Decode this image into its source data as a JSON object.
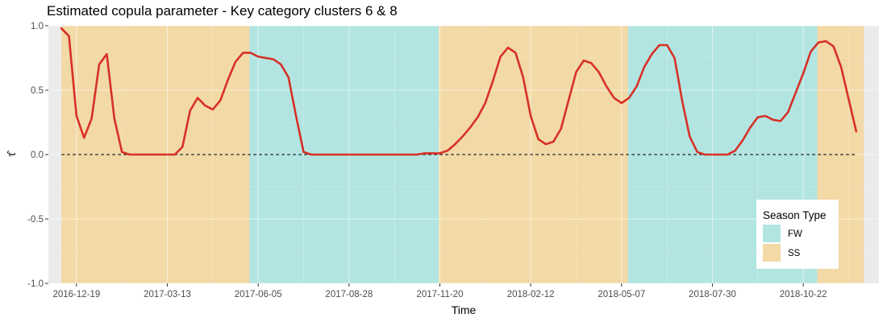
{
  "chart_data": {
    "type": "line",
    "title": "Estimated copula parameter - Key category clusters 6 & 8",
    "xlabel": "Time",
    "ylabel": "τ̂",
    "ylim": [
      -1.0,
      1.0
    ],
    "xlim": [
      "2016-11-23",
      "2018-12-31"
    ],
    "grid": true,
    "x_ticks": [
      "2016-12-19",
      "2017-03-13",
      "2017-06-05",
      "2017-08-28",
      "2017-11-20",
      "2018-02-12",
      "2018-05-07",
      "2018-07-30",
      "2018-10-22"
    ],
    "y_ticks": [
      {
        "value": -1.0,
        "label": "-1.0"
      },
      {
        "value": -0.5,
        "label": "-0.5"
      },
      {
        "value": 0.0,
        "label": "0.0"
      },
      {
        "value": 0.5,
        "label": "0.5"
      },
      {
        "value": 1.0,
        "label": "1.0"
      }
    ],
    "reference_line": {
      "y": 0.0,
      "style": "dashed"
    },
    "legend": {
      "title": "Season Type",
      "position": "bottom-right",
      "entries": [
        {
          "label": "FW",
          "color": "#b2e5e1"
        },
        {
          "label": "SS",
          "color": "#f2d9a6"
        }
      ]
    },
    "season_bands": [
      {
        "type": "SS",
        "start": "2016-12-05",
        "end": "2017-05-28"
      },
      {
        "type": "FW",
        "start": "2017-05-28",
        "end": "2017-11-19"
      },
      {
        "type": "SS",
        "start": "2017-11-19",
        "end": "2018-05-13"
      },
      {
        "type": "FW",
        "start": "2018-05-13",
        "end": "2018-11-04"
      },
      {
        "type": "SS",
        "start": "2018-11-04",
        "end": "2018-12-17"
      }
    ],
    "series": [
      {
        "color": "#d73027",
        "points": [
          [
            "2016-12-05",
            0.98
          ],
          [
            "2016-12-12",
            0.92
          ],
          [
            "2016-12-19",
            0.3
          ],
          [
            "2016-12-26",
            0.13
          ],
          [
            "2017-01-02",
            0.28
          ],
          [
            "2017-01-09",
            0.7
          ],
          [
            "2017-01-16",
            0.78
          ],
          [
            "2017-01-23",
            0.28
          ],
          [
            "2017-01-30",
            0.02
          ],
          [
            "2017-02-06",
            0.0
          ],
          [
            "2017-02-13",
            0.0
          ],
          [
            "2017-02-20",
            0.0
          ],
          [
            "2017-02-27",
            0.0
          ],
          [
            "2017-03-06",
            0.0
          ],
          [
            "2017-03-13",
            0.0
          ],
          [
            "2017-03-20",
            0.0
          ],
          [
            "2017-03-27",
            0.06
          ],
          [
            "2017-04-03",
            0.34
          ],
          [
            "2017-04-10",
            0.44
          ],
          [
            "2017-04-17",
            0.38
          ],
          [
            "2017-04-24",
            0.35
          ],
          [
            "2017-05-01",
            0.42
          ],
          [
            "2017-05-08",
            0.58
          ],
          [
            "2017-05-15",
            0.72
          ],
          [
            "2017-05-22",
            0.79
          ],
          [
            "2017-05-29",
            0.79
          ],
          [
            "2017-06-05",
            0.76
          ],
          [
            "2017-06-12",
            0.75
          ],
          [
            "2017-06-19",
            0.74
          ],
          [
            "2017-06-26",
            0.7
          ],
          [
            "2017-07-03",
            0.6
          ],
          [
            "2017-07-10",
            0.3
          ],
          [
            "2017-07-17",
            0.02
          ],
          [
            "2017-07-24",
            0.0
          ],
          [
            "2017-08-28",
            0.0
          ],
          [
            "2017-10-30",
            0.0
          ],
          [
            "2017-11-06",
            0.01
          ],
          [
            "2017-11-20",
            0.01
          ],
          [
            "2017-11-27",
            0.03
          ],
          [
            "2017-12-04",
            0.08
          ],
          [
            "2017-12-11",
            0.14
          ],
          [
            "2017-12-18",
            0.21
          ],
          [
            "2017-12-25",
            0.29
          ],
          [
            "2018-01-01",
            0.4
          ],
          [
            "2018-01-08",
            0.57
          ],
          [
            "2018-01-15",
            0.76
          ],
          [
            "2018-01-22",
            0.83
          ],
          [
            "2018-01-29",
            0.79
          ],
          [
            "2018-02-05",
            0.6
          ],
          [
            "2018-02-12",
            0.3
          ],
          [
            "2018-02-19",
            0.12
          ],
          [
            "2018-02-26",
            0.08
          ],
          [
            "2018-03-05",
            0.1
          ],
          [
            "2018-03-12",
            0.2
          ],
          [
            "2018-03-19",
            0.42
          ],
          [
            "2018-03-26",
            0.64
          ],
          [
            "2018-04-02",
            0.73
          ],
          [
            "2018-04-09",
            0.71
          ],
          [
            "2018-04-16",
            0.64
          ],
          [
            "2018-04-23",
            0.53
          ],
          [
            "2018-04-30",
            0.44
          ],
          [
            "2018-05-07",
            0.4
          ],
          [
            "2018-05-14",
            0.44
          ],
          [
            "2018-05-21",
            0.53
          ],
          [
            "2018-05-28",
            0.68
          ],
          [
            "2018-06-04",
            0.78
          ],
          [
            "2018-06-11",
            0.85
          ],
          [
            "2018-06-18",
            0.85
          ],
          [
            "2018-06-25",
            0.75
          ],
          [
            "2018-07-02",
            0.42
          ],
          [
            "2018-07-09",
            0.14
          ],
          [
            "2018-07-16",
            0.02
          ],
          [
            "2018-07-23",
            0.0
          ],
          [
            "2018-07-30",
            0.0
          ],
          [
            "2018-08-06",
            0.0
          ],
          [
            "2018-08-13",
            0.0
          ],
          [
            "2018-08-20",
            0.03
          ],
          [
            "2018-08-27",
            0.11
          ],
          [
            "2018-09-03",
            0.21
          ],
          [
            "2018-09-10",
            0.29
          ],
          [
            "2018-09-17",
            0.3
          ],
          [
            "2018-09-24",
            0.27
          ],
          [
            "2018-10-01",
            0.26
          ],
          [
            "2018-10-08",
            0.33
          ],
          [
            "2018-10-15",
            0.48
          ],
          [
            "2018-10-22",
            0.63
          ],
          [
            "2018-10-29",
            0.8
          ],
          [
            "2018-11-05",
            0.87
          ],
          [
            "2018-11-12",
            0.88
          ],
          [
            "2018-11-19",
            0.84
          ],
          [
            "2018-11-26",
            0.68
          ],
          [
            "2018-12-03",
            0.43
          ],
          [
            "2018-12-10",
            0.18
          ]
        ]
      }
    ]
  }
}
